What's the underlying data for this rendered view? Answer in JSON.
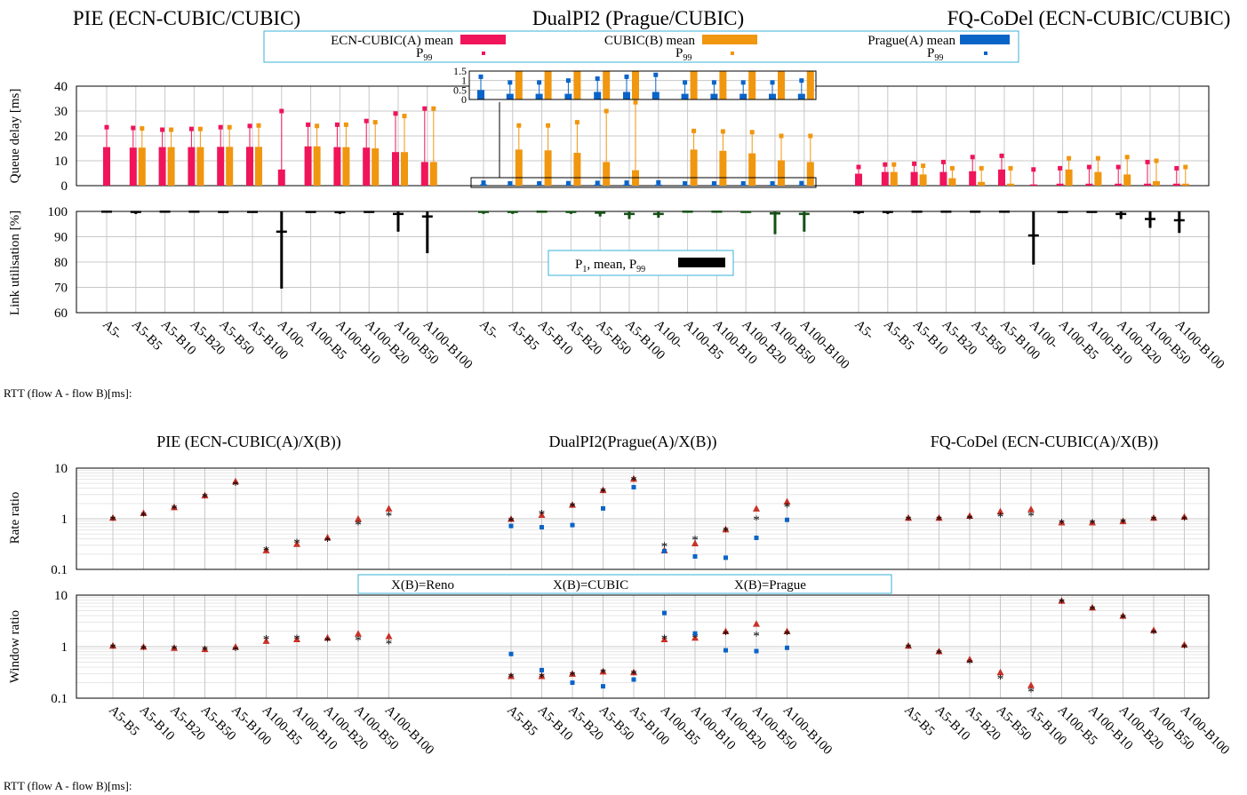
{
  "colors": {
    "ecn_cubic": "#f0145a",
    "cubic": "#f0960f",
    "prague": "#0a64c8",
    "reno": "#c83228",
    "star": "#000000",
    "util_green": "#145014",
    "util_black": "#000000"
  },
  "top": {
    "titles": [
      "PIE (ECN-CUBIC/CUBIC)",
      "DualPI2 (Prague/CUBIC)",
      "FQ-CoDel (ECN-CUBIC/CUBIC)"
    ],
    "legend": {
      "a_mean": "ECN-CUBIC(A) mean",
      "b_mean": "CUBIC(B) mean",
      "prague_mean": "Prague(A) mean",
      "p99": "P",
      "p99_sub": "99"
    },
    "util_legend": {
      "label": "P",
      "sub1": "1",
      "mid": ", mean, P",
      "sub2": "99"
    },
    "ylabel_delay": "Queue delay [ms]",
    "ylabel_util": "Link utilisation [%]",
    "rtt_label": "RTT (flow A - flow B)[ms]:",
    "categories": [
      "A5-",
      "A5-B5",
      "A5-B10",
      "A5-B20",
      "A5-B50",
      "A5-B100",
      "A100-",
      "A100-B5",
      "A100-B10",
      "A100-B20",
      "A100-B50",
      "A100-B100"
    ]
  },
  "bottom": {
    "titles": [
      "PIE (ECN-CUBIC(A)/X(B))",
      "DualPI2(Prague(A)/X(B))",
      "FQ-CoDel (ECN-CUBIC(A)/X(B))"
    ],
    "ylabel_rate": "Rate ratio",
    "ylabel_window": "Window ratio",
    "legend": [
      "X(B)=Reno",
      "X(B)=CUBIC",
      "X(B)=Prague"
    ],
    "rtt_label": "RTT (flow A - flow B)[ms]:",
    "categories": [
      "A5-B5",
      "A5-B10",
      "A5-B20",
      "A5-B50",
      "A5-B100",
      "A100-B5",
      "A100-B10",
      "A100-B20",
      "A100-B50",
      "A100-B100"
    ]
  },
  "chart_data": [
    {
      "type": "bar",
      "title": "PIE (ECN-CUBIC/CUBIC)",
      "ylabel": "Queue delay [ms]",
      "ylim": [
        0,
        40
      ],
      "categories": [
        "A5-",
        "A5-B5",
        "A5-B10",
        "A5-B20",
        "A5-B50",
        "A5-B100",
        "A100-",
        "A100-B5",
        "A100-B10",
        "A100-B20",
        "A100-B50",
        "A100-B100"
      ],
      "series": [
        {
          "name": "ECN-CUBIC(A) mean",
          "values": [
            15.5,
            15.3,
            15.5,
            15.5,
            15.6,
            15.6,
            6.5,
            15.8,
            15.5,
            15.3,
            13.5,
            9.5
          ],
          "p99": [
            23.5,
            23.2,
            22.5,
            22.8,
            23.5,
            24,
            30,
            24.5,
            24.5,
            26,
            29,
            31
          ]
        },
        {
          "name": "CUBIC(B) mean",
          "values": [
            null,
            15.3,
            15.5,
            15.5,
            15.6,
            15.6,
            null,
            15.8,
            15.5,
            15,
            13.5,
            9.5
          ],
          "p99": [
            null,
            23,
            22.5,
            22.8,
            23.5,
            24.2,
            null,
            24,
            24.5,
            25.5,
            28,
            31
          ]
        }
      ]
    },
    {
      "type": "bar",
      "title": "DualPI2 (Prague/CUBIC)",
      "ylabel": "Queue delay [ms]",
      "ylim": [
        0,
        40
      ],
      "categories": [
        "A5-",
        "A5-B5",
        "A5-B10",
        "A5-B20",
        "A5-B50",
        "A5-B100",
        "A100-",
        "A100-B5",
        "A100-B10",
        "A100-B20",
        "A100-B50",
        "A100-B100"
      ],
      "series": [
        {
          "name": "Prague(A) mean",
          "values": [
            0.5,
            0.3,
            0.3,
            0.3,
            0.4,
            0.4,
            0.4,
            0.3,
            0.3,
            0.3,
            0.3,
            0.3
          ],
          "p99": [
            1.2,
            0.9,
            0.9,
            1.0,
            1.1,
            1.2,
            1.3,
            0.9,
            0.9,
            0.9,
            0.9,
            1.0
          ]
        },
        {
          "name": "CUBIC(B) mean",
          "values": [
            null,
            14.5,
            14.2,
            13.2,
            9.5,
            6.2,
            null,
            14.5,
            14,
            13,
            10.2,
            9.5
          ],
          "p99": [
            null,
            24.2,
            24.2,
            25.5,
            30,
            33.5,
            null,
            22,
            21.8,
            21.5,
            20,
            20
          ]
        }
      ]
    },
    {
      "type": "bar",
      "title": "FQ-CoDel (ECN-CUBIC/CUBIC)",
      "ylabel": "Queue delay [ms]",
      "ylim": [
        0,
        40
      ],
      "categories": [
        "A5-",
        "A5-B5",
        "A5-B10",
        "A5-B20",
        "A5-B50",
        "A5-B100",
        "A100-",
        "A100-B5",
        "A100-B10",
        "A100-B20",
        "A100-B50",
        "A100-B100"
      ],
      "series": [
        {
          "name": "ECN-CUBIC(A) mean",
          "values": [
            4.8,
            5.5,
            5.5,
            5.5,
            5.8,
            6.5,
            0.5,
            0.8,
            0.8,
            0.8,
            0.8,
            0.8
          ],
          "p99": [
            7.5,
            8.5,
            8.8,
            9.5,
            11.5,
            12,
            6.5,
            7,
            7.5,
            7.5,
            9.5,
            7
          ]
        },
        {
          "name": "CUBIC(B) mean",
          "values": [
            null,
            5.5,
            4.5,
            3,
            1.5,
            0.8,
            null,
            6.5,
            5.5,
            4.5,
            1.8,
            0.8
          ],
          "p99": [
            null,
            8.5,
            8,
            7,
            7,
            7,
            null,
            11,
            11,
            11.5,
            10,
            7.5
          ]
        }
      ]
    },
    {
      "type": "scatter",
      "title": "",
      "ylabel": "Link utilisation [%]",
      "ylim": [
        60,
        100
      ],
      "categories": [
        "A5-",
        "A5-B5",
        "A5-B10",
        "A5-B20",
        "A5-B50",
        "A5-B100",
        "A100-",
        "A100-B5",
        "A100-B10",
        "A100-B20",
        "A100-B50",
        "A100-B100"
      ],
      "series": [
        {
          "name": "P1, mean, P99",
          "group": "PIE",
          "p1": [
            99.5,
            99,
            99.5,
            99.5,
            99.5,
            99.5,
            69.5,
            99.5,
            99,
            99.5,
            92,
            83.5
          ],
          "mean": [
            99.9,
            99.8,
            99.9,
            99.9,
            99.8,
            99.8,
            92,
            99.8,
            99.7,
            99.8,
            99,
            98
          ],
          "p99": [
            100,
            100,
            100,
            100,
            100,
            100,
            100,
            100,
            100,
            100,
            100,
            100
          ]
        },
        {
          "group": "DualPI2",
          "p1": [
            99,
            99,
            99.5,
            99,
            98,
            97,
            97.5,
            99.5,
            99.5,
            99.5,
            91,
            92
          ],
          "mean": [
            99.8,
            99.8,
            99.9,
            99.8,
            99.5,
            99,
            99,
            99.9,
            99.9,
            99.8,
            99.2,
            99
          ],
          "p99": [
            100,
            100,
            100,
            100,
            100,
            100,
            100,
            100,
            100,
            100,
            100,
            100
          ]
        },
        {
          "group": "FQ-CoDel",
          "p1": [
            99,
            99,
            99.5,
            99.5,
            99.5,
            99.5,
            79,
            99.5,
            99.5,
            97,
            93.5,
            91.5
          ],
          "mean": [
            99.8,
            99.8,
            99.9,
            99.9,
            99.9,
            99.9,
            90.5,
            99.8,
            99.8,
            99,
            97,
            96.5
          ],
          "p99": [
            100,
            100,
            100,
            100,
            100,
            100,
            100,
            100,
            100,
            100,
            100,
            100
          ]
        }
      ]
    },
    {
      "type": "scatter",
      "title": "Rate ratio",
      "ylabel": "Rate ratio",
      "ylim": [
        0.1,
        10
      ],
      "log_scale": true,
      "categories": [
        "A5-B5",
        "A5-B10",
        "A5-B20",
        "A5-B50",
        "A5-B100",
        "A100-B5",
        "A100-B10",
        "A100-B20",
        "A100-B50",
        "A100-B100"
      ],
      "groups": [
        {
          "title": "PIE (ECN-CUBIC(A)/X(B))",
          "series": [
            {
              "name": "X(B)=Reno",
              "values": [
                1.05,
                1.3,
                1.7,
                2.9,
                5.5,
                0.24,
                0.32,
                0.43,
                1.0,
                1.6
              ]
            },
            {
              "name": "X(B)=CUBIC",
              "values": [
                1.0,
                1.2,
                1.65,
                2.8,
                4.8,
                0.25,
                0.35,
                0.38,
                0.8,
                1.2
              ]
            }
          ]
        },
        {
          "title": "DualPI2(Prague(A)/X(B))",
          "series": [
            {
              "name": "X(B)=Reno",
              "values": [
                1.0,
                1.2,
                1.9,
                3.7,
                6.2,
                0.24,
                0.33,
                0.62,
                1.6,
                2.2
              ]
            },
            {
              "name": "X(B)=CUBIC",
              "values": [
                0.95,
                1.3,
                1.85,
                3.6,
                6.0,
                0.3,
                0.4,
                0.6,
                1.0,
                1.8
              ]
            },
            {
              "name": "X(B)=Prague",
              "values": [
                0.72,
                0.68,
                0.75,
                1.6,
                4.2,
                0.23,
                0.18,
                0.17,
                0.42,
                0.95
              ]
            }
          ]
        },
        {
          "title": "FQ-CoDel (ECN-CUBIC(A)/X(B))",
          "series": [
            {
              "name": "X(B)=Reno",
              "values": [
                1.05,
                1.05,
                1.15,
                1.4,
                1.55,
                0.85,
                0.85,
                0.9,
                1.05,
                1.1
              ]
            },
            {
              "name": "X(B)=CUBIC",
              "values": [
                1.0,
                1.0,
                1.05,
                1.15,
                1.2,
                0.85,
                0.85,
                0.88,
                1.0,
                1.0
              ]
            }
          ]
        }
      ]
    },
    {
      "type": "scatter",
      "title": "Window ratio",
      "ylabel": "Window ratio",
      "ylim": [
        0.1,
        10
      ],
      "log_scale": true,
      "categories": [
        "A5-B5",
        "A5-B10",
        "A5-B20",
        "A5-B50",
        "A5-B100",
        "A100-B5",
        "A100-B10",
        "A100-B20",
        "A100-B50",
        "A100-B100"
      ],
      "groups": [
        {
          "title": "PIE (ECN-CUBIC(A)/X(B))",
          "series": [
            {
              "name": "X(B)=Reno",
              "values": [
                1.05,
                1.0,
                0.95,
                0.9,
                1.0,
                1.3,
                1.4,
                1.5,
                1.8,
                1.6
              ]
            },
            {
              "name": "X(B)=CUBIC",
              "values": [
                1.0,
                0.95,
                0.95,
                0.9,
                0.88,
                1.45,
                1.5,
                1.35,
                1.4,
                1.2
              ]
            }
          ]
        },
        {
          "title": "DualPI2(Prague(A)/X(B))",
          "series": [
            {
              "name": "X(B)=Reno",
              "values": [
                0.27,
                0.27,
                0.3,
                0.33,
                0.32,
                1.4,
                1.5,
                2.0,
                2.8,
                2.0
              ]
            },
            {
              "name": "X(B)=CUBIC",
              "values": [
                0.27,
                0.27,
                0.29,
                0.33,
                0.31,
                1.5,
                1.6,
                1.8,
                1.7,
                1.8
              ]
            },
            {
              "name": "X(B)=Prague",
              "values": [
                0.72,
                0.35,
                0.2,
                0.17,
                0.23,
                4.5,
                1.8,
                0.85,
                0.82,
                0.95
              ]
            }
          ]
        },
        {
          "title": "FQ-CoDel (ECN-CUBIC(A)/X(B))",
          "series": [
            {
              "name": "X(B)=Reno",
              "values": [
                1.05,
                0.82,
                0.57,
                0.32,
                0.18,
                7.8,
                5.8,
                4.0,
                2.1,
                1.1
              ]
            },
            {
              "name": "X(B)=CUBIC",
              "values": [
                1.0,
                0.77,
                0.5,
                0.25,
                0.14,
                7.5,
                5.5,
                3.8,
                1.9,
                1.0
              ]
            }
          ]
        }
      ]
    }
  ]
}
